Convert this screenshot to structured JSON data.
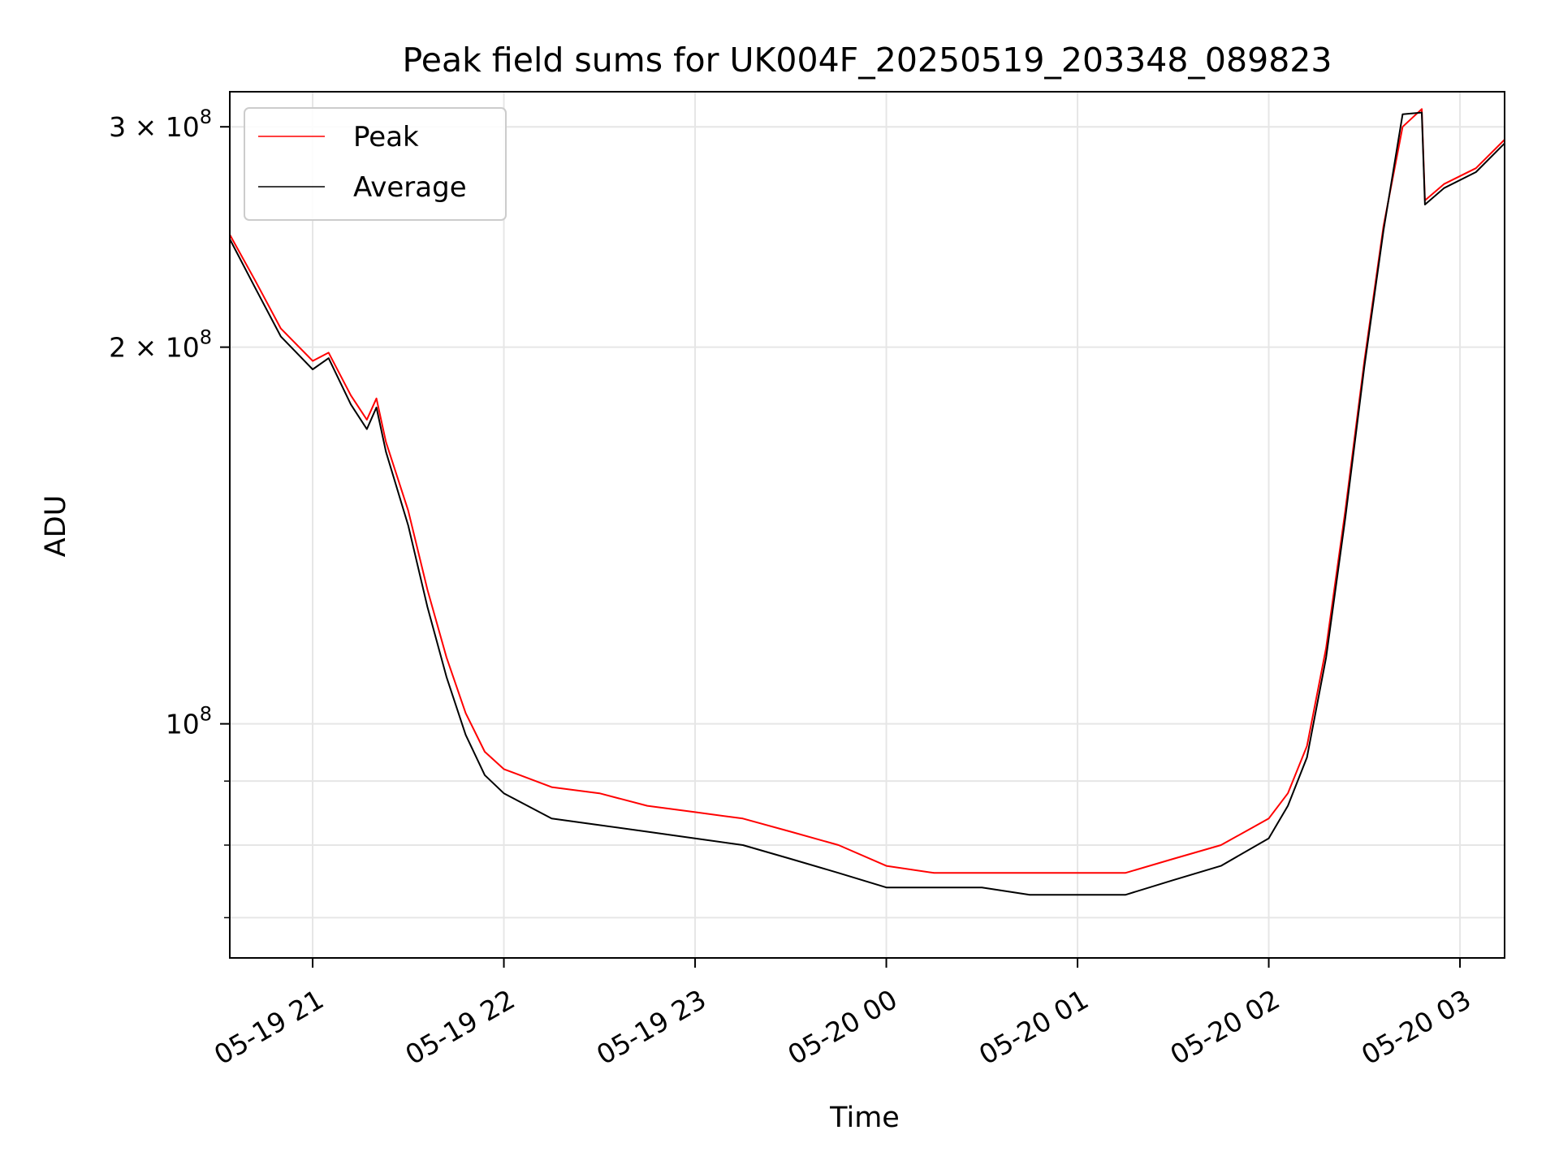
{
  "chart_data": {
    "type": "line",
    "title": "Peak field sums for UK004F_20250519_203348_089823",
    "xlabel": "Time",
    "ylabel": "ADU",
    "y_scale": "log",
    "grid": true,
    "legend_position": "top-left",
    "xlim": [
      "2025-05-19 20:34",
      "2025-05-20 03:14"
    ],
    "ylim": [
      65000000,
      320000000
    ],
    "x_ticks": [
      {
        "value": "2025-05-19 21:00",
        "label": "05-19 21"
      },
      {
        "value": "2025-05-19 22:00",
        "label": "05-19 22"
      },
      {
        "value": "2025-05-19 23:00",
        "label": "05-19 23"
      },
      {
        "value": "2025-05-20 00:00",
        "label": "05-20 00"
      },
      {
        "value": "2025-05-20 01:00",
        "label": "05-20 01"
      },
      {
        "value": "2025-05-20 02:00",
        "label": "05-20 02"
      },
      {
        "value": "2025-05-20 03:00",
        "label": "05-20 03"
      }
    ],
    "y_ticks_major": [
      {
        "value": 100000000,
        "base": "10",
        "exp": "8"
      },
      {
        "value": 200000000,
        "base": "2 × 10",
        "exp": "8"
      },
      {
        "value": 300000000,
        "base": "3 × 10",
        "exp": "8"
      }
    ],
    "y_ticks_minor": [
      70000000,
      80000000,
      90000000
    ],
    "x": [
      "2025-05-19 20:34",
      "2025-05-19 20:42",
      "2025-05-19 20:50",
      "2025-05-19 21:00",
      "2025-05-19 21:05",
      "2025-05-19 21:12",
      "2025-05-19 21:17",
      "2025-05-19 21:20",
      "2025-05-19 21:23",
      "2025-05-19 21:30",
      "2025-05-19 21:36",
      "2025-05-19 21:42",
      "2025-05-19 21:48",
      "2025-05-19 21:54",
      "2025-05-19 22:00",
      "2025-05-19 22:15",
      "2025-05-19 22:30",
      "2025-05-19 22:45",
      "2025-05-19 23:00",
      "2025-05-19 23:15",
      "2025-05-19 23:30",
      "2025-05-19 23:45",
      "2025-05-20 00:00",
      "2025-05-20 00:15",
      "2025-05-20 00:30",
      "2025-05-20 00:45",
      "2025-05-20 01:00",
      "2025-05-20 01:15",
      "2025-05-20 01:30",
      "2025-05-20 01:45",
      "2025-05-20 02:00",
      "2025-05-20 02:06",
      "2025-05-20 02:12",
      "2025-05-20 02:18",
      "2025-05-20 02:24",
      "2025-05-20 02:30",
      "2025-05-20 02:36",
      "2025-05-20 02:42",
      "2025-05-20 02:48",
      "2025-05-20 02:49",
      "2025-05-20 02:55",
      "2025-05-20 03:05",
      "2025-05-20 03:14"
    ],
    "series": [
      {
        "name": "Peak",
        "color": "#ff0000",
        "values": [
          246000000,
          226000000,
          207000000,
          195000000,
          198000000,
          183000000,
          175000000,
          182000000,
          168000000,
          148000000,
          128000000,
          113000000,
          102000000,
          95000000,
          92000000,
          89000000,
          88000000,
          86000000,
          85000000,
          84000000,
          82000000,
          80000000,
          77000000,
          76000000,
          76000000,
          76000000,
          76000000,
          76000000,
          78000000,
          80000000,
          84000000,
          88000000,
          96000000,
          115000000,
          148000000,
          195000000,
          250000000,
          300000000,
          310000000,
          262000000,
          270000000,
          278000000,
          293000000
        ]
      },
      {
        "name": "Average",
        "color": "#000000",
        "values": [
          244000000,
          223000000,
          204000000,
          192000000,
          196000000,
          180000000,
          172000000,
          179000000,
          165000000,
          144000000,
          124000000,
          109000000,
          98000000,
          91000000,
          88000000,
          84000000,
          83000000,
          82000000,
          81000000,
          80000000,
          78000000,
          76000000,
          74000000,
          74000000,
          74000000,
          73000000,
          73000000,
          73000000,
          75000000,
          77000000,
          81000000,
          86000000,
          94000000,
          113000000,
          146000000,
          193000000,
          248000000,
          307000000,
          308000000,
          260000000,
          268000000,
          276000000,
          291000000
        ]
      }
    ]
  }
}
